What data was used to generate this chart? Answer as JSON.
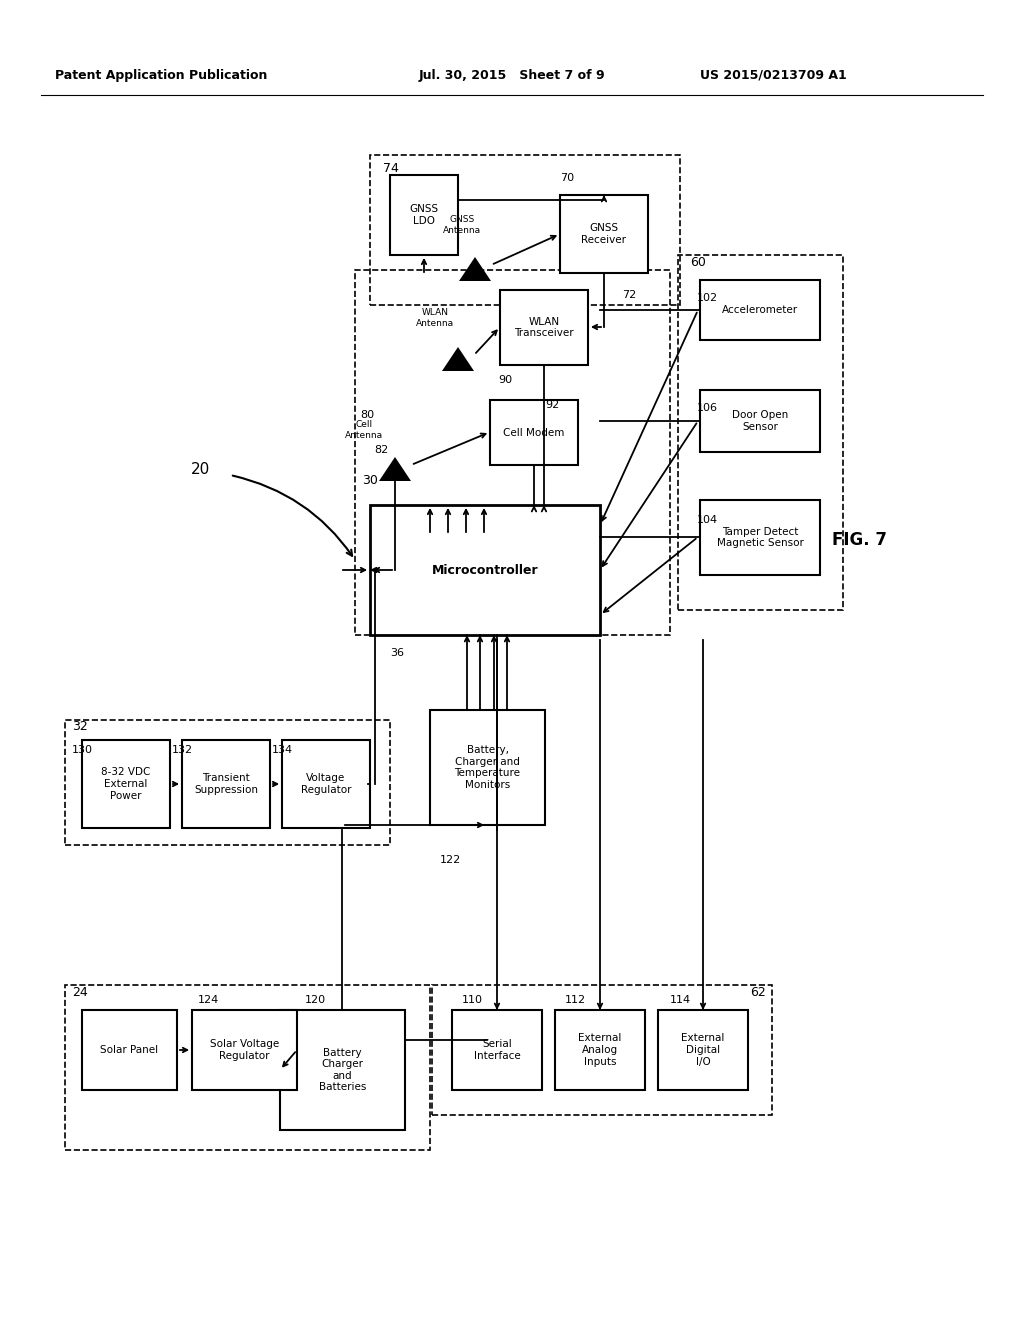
{
  "bg_color": "#ffffff",
  "header_left": "Patent Application Publication",
  "header_mid": "Jul. 30, 2015   Sheet 7 of 9",
  "header_right": "US 2015/0213709 A1"
}
